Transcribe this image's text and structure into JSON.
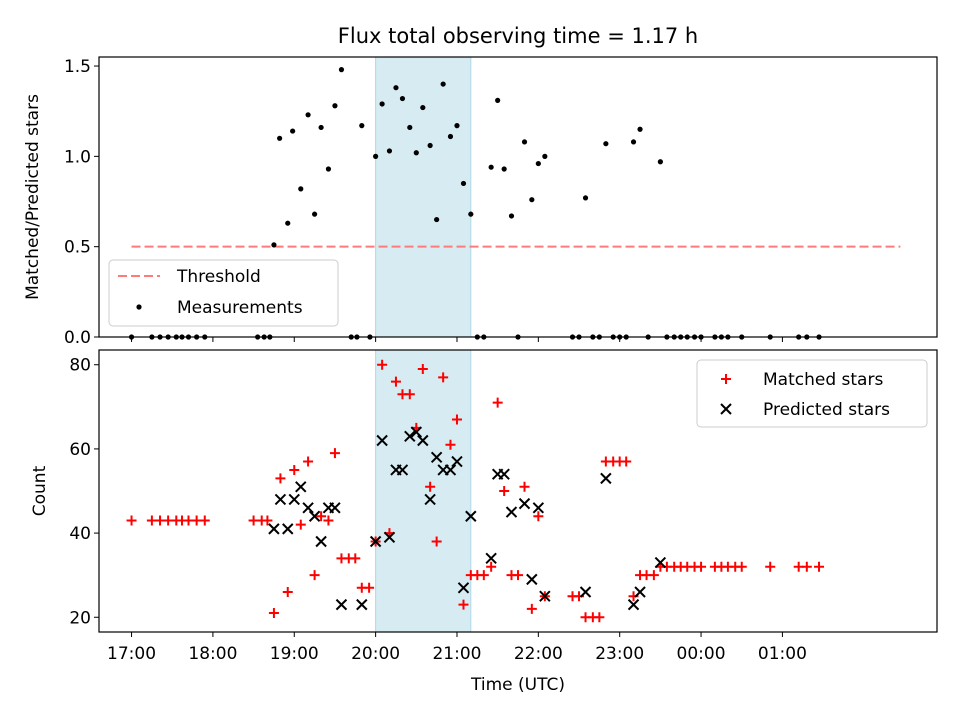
{
  "title": "Flux total observing time = 1.17 h",
  "colors": {
    "matched": "#ff0000",
    "predicted": "#000000",
    "threshold": "#ff7b7b",
    "band": "#add8e6"
  },
  "chart_data": [
    {
      "type": "scatter",
      "ylabel": "Matched/Predicted stars",
      "ylim": [
        0,
        1.55
      ],
      "y_ticks": [
        0.0,
        0.5,
        1.0,
        1.5
      ],
      "y_tick_labels": [
        "0.0",
        "0.5",
        "1.0",
        "1.5"
      ],
      "x_ticks": [
        17,
        18,
        19,
        20,
        21,
        22,
        23,
        24,
        25
      ],
      "x_tick_labels": [],
      "xlim": [
        16.6,
        26.9
      ],
      "shaded_interval": [
        20.0,
        21.17
      ],
      "threshold": {
        "name": "Threshold",
        "value": 0.5,
        "x_range": [
          17.0,
          26.45
        ]
      },
      "legend": {
        "placement": "lower-left",
        "entries": [
          "Threshold",
          "Measurements"
        ]
      },
      "series": [
        {
          "name": "Measurements",
          "points": [
            [
              17.0,
              0.0
            ],
            [
              17.25,
              0.0
            ],
            [
              17.35,
              0.0
            ],
            [
              17.45,
              0.0
            ],
            [
              17.55,
              0.0
            ],
            [
              17.62,
              0.0
            ],
            [
              17.7,
              0.0
            ],
            [
              17.8,
              0.0
            ],
            [
              17.9,
              0.0
            ],
            [
              18.55,
              0.0
            ],
            [
              18.63,
              0.0
            ],
            [
              18.7,
              0.0
            ],
            [
              18.75,
              0.51
            ],
            [
              18.82,
              1.1
            ],
            [
              18.92,
              0.63
            ],
            [
              18.98,
              1.14
            ],
            [
              19.08,
              0.82
            ],
            [
              19.17,
              1.23
            ],
            [
              19.25,
              0.68
            ],
            [
              19.33,
              1.16
            ],
            [
              19.42,
              0.93
            ],
            [
              19.5,
              1.28
            ],
            [
              19.58,
              1.48
            ],
            [
              19.7,
              0.0
            ],
            [
              19.77,
              0.0
            ],
            [
              19.83,
              1.17
            ],
            [
              19.93,
              0.0
            ],
            [
              20.0,
              1.0
            ],
            [
              20.08,
              1.29
            ],
            [
              20.17,
              1.03
            ],
            [
              20.25,
              1.38
            ],
            [
              20.33,
              1.32
            ],
            [
              20.42,
              1.16
            ],
            [
              20.5,
              1.02
            ],
            [
              20.58,
              1.27
            ],
            [
              20.67,
              1.06
            ],
            [
              20.75,
              0.65
            ],
            [
              20.83,
              1.4
            ],
            [
              20.92,
              1.11
            ],
            [
              21.0,
              1.17
            ],
            [
              21.08,
              0.85
            ],
            [
              21.17,
              0.68
            ],
            [
              21.25,
              0.0
            ],
            [
              21.33,
              0.0
            ],
            [
              21.42,
              0.94
            ],
            [
              21.5,
              1.31
            ],
            [
              21.58,
              0.93
            ],
            [
              21.67,
              0.67
            ],
            [
              21.75,
              0.0
            ],
            [
              21.83,
              1.08
            ],
            [
              21.92,
              0.76
            ],
            [
              22.0,
              0.96
            ],
            [
              22.08,
              1.0
            ],
            [
              22.42,
              0.0
            ],
            [
              22.5,
              0.0
            ],
            [
              22.58,
              0.77
            ],
            [
              22.67,
              0.0
            ],
            [
              22.75,
              0.0
            ],
            [
              22.83,
              1.07
            ],
            [
              22.92,
              0.0
            ],
            [
              23.0,
              0.0
            ],
            [
              23.08,
              0.0
            ],
            [
              23.17,
              1.08
            ],
            [
              23.25,
              1.15
            ],
            [
              23.35,
              0.0
            ],
            [
              23.5,
              0.97
            ],
            [
              23.58,
              0.0
            ],
            [
              23.67,
              0.0
            ],
            [
              23.75,
              0.0
            ],
            [
              23.83,
              0.0
            ],
            [
              23.92,
              0.0
            ],
            [
              24.0,
              0.0
            ],
            [
              24.17,
              0.0
            ],
            [
              24.25,
              0.0
            ],
            [
              24.33,
              0.0
            ],
            [
              24.5,
              0.0
            ],
            [
              24.85,
              0.0
            ],
            [
              25.2,
              0.0
            ],
            [
              25.3,
              0.0
            ],
            [
              25.45,
              0.0
            ]
          ]
        }
      ]
    },
    {
      "type": "scatter",
      "ylabel": "Count",
      "xlabel": "Time (UTC)",
      "ylim": [
        16.5,
        83.5
      ],
      "y_ticks": [
        20,
        40,
        60,
        80
      ],
      "y_tick_labels": [
        "20",
        "40",
        "60",
        "80"
      ],
      "x_ticks": [
        17,
        18,
        19,
        20,
        21,
        22,
        23,
        24,
        25
      ],
      "x_tick_labels": [
        "17:00",
        "18:00",
        "19:00",
        "20:00",
        "21:00",
        "22:00",
        "23:00",
        "00:00",
        "01:00"
      ],
      "xlim": [
        16.6,
        26.9
      ],
      "shaded_interval": [
        20.0,
        21.17
      ],
      "legend": {
        "placement": "top-right",
        "entries": [
          "Matched stars",
          "Predicted stars"
        ]
      },
      "series": [
        {
          "name": "Matched stars",
          "marker": "plus",
          "points": [
            [
              17.0,
              43
            ],
            [
              17.25,
              43
            ],
            [
              17.35,
              43
            ],
            [
              17.45,
              43
            ],
            [
              17.55,
              43
            ],
            [
              17.62,
              43
            ],
            [
              17.7,
              43
            ],
            [
              17.8,
              43
            ],
            [
              17.9,
              43
            ],
            [
              18.5,
              43
            ],
            [
              18.6,
              43
            ],
            [
              18.67,
              43
            ],
            [
              18.75,
              21
            ],
            [
              18.83,
              53
            ],
            [
              18.92,
              26
            ],
            [
              19.0,
              55
            ],
            [
              19.08,
              42
            ],
            [
              19.17,
              57
            ],
            [
              19.25,
              30
            ],
            [
              19.33,
              44
            ],
            [
              19.42,
              43
            ],
            [
              19.5,
              59
            ],
            [
              19.58,
              34
            ],
            [
              19.67,
              34
            ],
            [
              19.75,
              34
            ],
            [
              19.83,
              27
            ],
            [
              19.92,
              27
            ],
            [
              20.0,
              38
            ],
            [
              20.08,
              80
            ],
            [
              20.17,
              40
            ],
            [
              20.25,
              76
            ],
            [
              20.33,
              73
            ],
            [
              20.42,
              73
            ],
            [
              20.5,
              65
            ],
            [
              20.58,
              79
            ],
            [
              20.67,
              51
            ],
            [
              20.75,
              38
            ],
            [
              20.83,
              77
            ],
            [
              20.92,
              61
            ],
            [
              21.0,
              67
            ],
            [
              21.08,
              23
            ],
            [
              21.17,
              30
            ],
            [
              21.25,
              30
            ],
            [
              21.33,
              30
            ],
            [
              21.42,
              32
            ],
            [
              21.5,
              71
            ],
            [
              21.58,
              50
            ],
            [
              21.67,
              30
            ],
            [
              21.75,
              30
            ],
            [
              21.83,
              51
            ],
            [
              21.92,
              22
            ],
            [
              22.0,
              44
            ],
            [
              22.08,
              25
            ],
            [
              22.42,
              25
            ],
            [
              22.5,
              25
            ],
            [
              22.58,
              20
            ],
            [
              22.67,
              20
            ],
            [
              22.75,
              20
            ],
            [
              22.83,
              57
            ],
            [
              22.92,
              57
            ],
            [
              23.0,
              57
            ],
            [
              23.08,
              57
            ],
            [
              23.17,
              25
            ],
            [
              23.25,
              30
            ],
            [
              23.33,
              30
            ],
            [
              23.42,
              30
            ],
            [
              23.5,
              32
            ],
            [
              23.58,
              32
            ],
            [
              23.67,
              32
            ],
            [
              23.75,
              32
            ],
            [
              23.83,
              32
            ],
            [
              23.92,
              32
            ],
            [
              24.0,
              32
            ],
            [
              24.17,
              32
            ],
            [
              24.25,
              32
            ],
            [
              24.33,
              32
            ],
            [
              24.42,
              32
            ],
            [
              24.5,
              32
            ],
            [
              24.85,
              32
            ],
            [
              25.2,
              32
            ],
            [
              25.3,
              32
            ],
            [
              25.45,
              32
            ]
          ]
        },
        {
          "name": "Predicted stars",
          "marker": "x",
          "points": [
            [
              18.75,
              41
            ],
            [
              18.83,
              48
            ],
            [
              18.92,
              41
            ],
            [
              19.0,
              48
            ],
            [
              19.08,
              51
            ],
            [
              19.17,
              46
            ],
            [
              19.25,
              44
            ],
            [
              19.33,
              38
            ],
            [
              19.42,
              46
            ],
            [
              19.5,
              46
            ],
            [
              19.58,
              23
            ],
            [
              19.83,
              23
            ],
            [
              20.0,
              38
            ],
            [
              20.08,
              62
            ],
            [
              20.17,
              39
            ],
            [
              20.25,
              55
            ],
            [
              20.33,
              55
            ],
            [
              20.42,
              63
            ],
            [
              20.5,
              64
            ],
            [
              20.58,
              62
            ],
            [
              20.67,
              48
            ],
            [
              20.75,
              58
            ],
            [
              20.83,
              55
            ],
            [
              20.92,
              55
            ],
            [
              21.0,
              57
            ],
            [
              21.08,
              27
            ],
            [
              21.17,
              44
            ],
            [
              21.42,
              34
            ],
            [
              21.5,
              54
            ],
            [
              21.58,
              54
            ],
            [
              21.67,
              45
            ],
            [
              21.83,
              47
            ],
            [
              21.92,
              29
            ],
            [
              22.0,
              46
            ],
            [
              22.08,
              25
            ],
            [
              22.58,
              26
            ],
            [
              22.83,
              53
            ],
            [
              23.17,
              23
            ],
            [
              23.25,
              26
            ],
            [
              23.5,
              33
            ]
          ]
        }
      ]
    }
  ]
}
